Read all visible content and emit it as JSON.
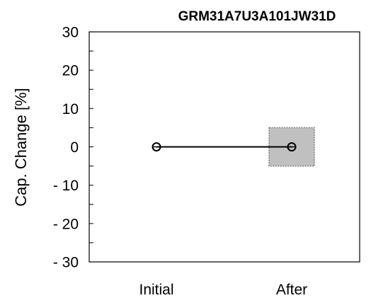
{
  "chart_data": {
    "type": "line",
    "title": "GRM31A7U3A101JW31D",
    "xlabel": "",
    "ylabel": "Cap. Change [%]",
    "categories": [
      "Initial",
      "After"
    ],
    "series": [
      {
        "values": [
          0,
          0
        ]
      }
    ],
    "ylim": [
      -30,
      30
    ],
    "yticks": [
      30,
      20,
      10,
      0,
      -10,
      -20,
      -30
    ],
    "ytick_labels": [
      "30",
      "20",
      "10",
      "0",
      "- 10",
      "- 20",
      "- 30"
    ],
    "spec_band": {
      "category": "After",
      "ymin": -5,
      "ymax": 5,
      "fill_color": "#c0c0c0",
      "border_color": "#808080"
    },
    "grid": false,
    "legend": "none",
    "colors": {
      "line": "#000000",
      "axis": "#000000"
    }
  }
}
